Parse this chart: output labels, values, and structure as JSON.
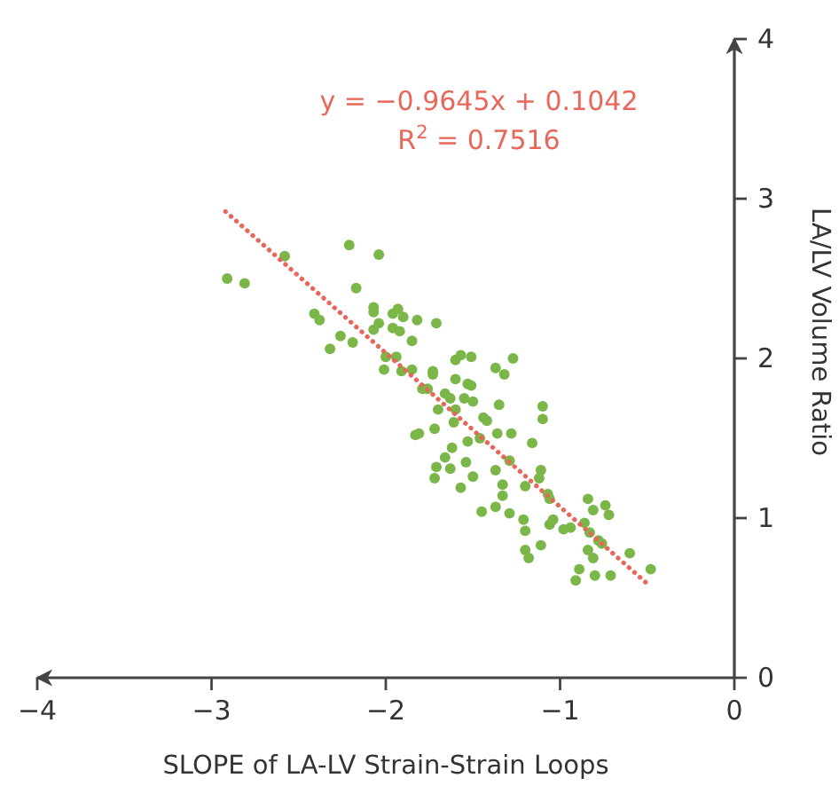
{
  "chart_data": {
    "type": "scatter",
    "xlabel": "SLOPE of LA-LV Strain-Strain Loops",
    "ylabel": "LA/LV Volume Ratio",
    "xlim": [
      -4,
      0
    ],
    "ylim": [
      0,
      4
    ],
    "xticks": [
      {
        "value": -4,
        "label": "−4"
      },
      {
        "value": -3,
        "label": "−3"
      },
      {
        "value": -2,
        "label": "−2"
      },
      {
        "value": -1,
        "label": "−1"
      },
      0
    ],
    "yticks": [
      0,
      1,
      2,
      3,
      4
    ],
    "grid": false,
    "annotations": [
      "y = −0.9645x + 0.1042",
      "R$^{2}$ = 0.7516"
    ],
    "series": [
      {
        "color": "#7ab648",
        "marker": "circle",
        "x": [
          -2.91,
          -2.81,
          -2.58,
          -2.21,
          -2.04,
          -2.17,
          -2.41,
          -2.38,
          -2.26,
          -2.32,
          -2.19,
          -2.07,
          -2.07,
          -2.07,
          -2.04,
          -1.96,
          -1.93,
          -1.9,
          -1.96,
          -1.92,
          -1.82,
          -1.71,
          -1.85,
          -2.0,
          -1.94,
          -2.01,
          -1.91,
          -1.85,
          -1.73,
          -1.73,
          -1.79,
          -1.76,
          -1.6,
          -1.57,
          -1.51,
          -1.27,
          -1.37,
          -1.32,
          -1.6,
          -1.53,
          -1.51,
          -1.66,
          -1.63,
          -1.55,
          -1.5,
          -1.7,
          -1.6,
          -1.35,
          -1.1,
          -1.1,
          -1.61,
          -1.44,
          -1.42,
          -1.72,
          -1.83,
          -1.81,
          -1.62,
          -1.53,
          -1.46,
          -1.36,
          -1.28,
          -1.16,
          -1.66,
          -1.63,
          -1.71,
          -1.54,
          -1.37,
          -1.29,
          -1.11,
          -1.12,
          -1.72,
          -1.57,
          -1.5,
          -1.33,
          -1.2,
          -1.33,
          -1.07,
          -1.06,
          -1.45,
          -1.37,
          -1.29,
          -1.21,
          -1.2,
          -1.06,
          -1.04,
          -1.11,
          -1.2,
          -1.18,
          -0.98,
          -0.94,
          -0.84,
          -0.81,
          -0.74,
          -0.72,
          -0.86,
          -0.83,
          -0.78,
          -0.76,
          -0.84,
          -0.81,
          -0.89,
          -0.91,
          -0.8,
          -0.71,
          -0.6,
          -0.48
        ],
        "values": [
          2.5,
          2.47,
          2.64,
          2.71,
          2.65,
          2.44,
          2.28,
          2.24,
          2.14,
          2.06,
          2.1,
          2.32,
          2.29,
          2.18,
          2.22,
          2.28,
          2.31,
          2.26,
          2.19,
          2.17,
          2.24,
          2.22,
          2.11,
          2.01,
          2.01,
          1.93,
          1.92,
          1.93,
          1.92,
          1.9,
          1.81,
          1.81,
          1.99,
          2.02,
          2.01,
          2.0,
          1.94,
          1.9,
          1.87,
          1.84,
          1.83,
          1.78,
          1.75,
          1.75,
          1.73,
          1.68,
          1.68,
          1.71,
          1.7,
          1.62,
          1.6,
          1.63,
          1.61,
          1.56,
          1.52,
          1.53,
          1.44,
          1.48,
          1.5,
          1.53,
          1.53,
          1.47,
          1.38,
          1.31,
          1.32,
          1.35,
          1.3,
          1.36,
          1.3,
          1.25,
          1.25,
          1.19,
          1.26,
          1.21,
          1.2,
          1.14,
          1.15,
          1.12,
          1.04,
          1.07,
          1.03,
          0.99,
          0.92,
          0.96,
          0.99,
          0.83,
          0.8,
          0.75,
          0.93,
          0.94,
          1.12,
          1.05,
          1.08,
          1.02,
          0.97,
          0.91,
          0.86,
          0.84,
          0.8,
          0.75,
          0.68,
          0.61,
          0.64,
          0.64,
          0.78,
          0.68
        ]
      },
      {
        "type": "line",
        "color": "#e8675a",
        "line_style": "dotted",
        "x": [
          -2.92,
          -0.48
        ],
        "values": [
          2.92,
          0.57
        ]
      }
    ]
  }
}
